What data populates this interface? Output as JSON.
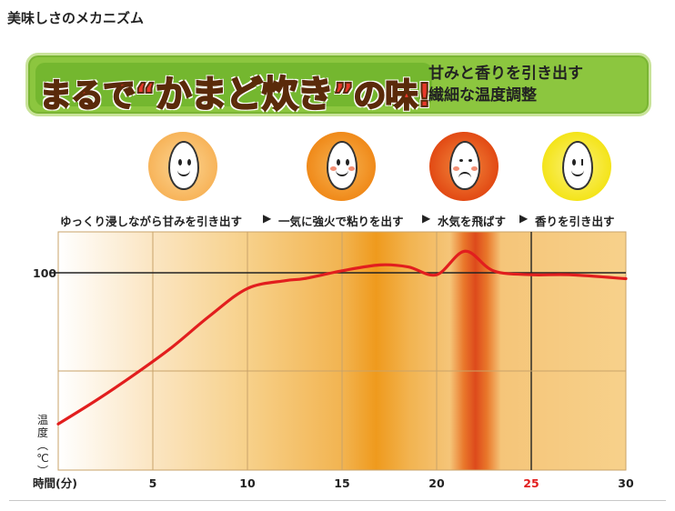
{
  "page": {
    "title": "美味しさのメカニズム"
  },
  "banner": {
    "main_prefix": "まるで",
    "main_open_quote": "“",
    "main_highlight": "かまど炊き",
    "main_close_quote": "”",
    "main_suffix": "の味!",
    "sub_line1": "甘みと香りを引き出す",
    "sub_line2": "繊細な温度調整"
  },
  "steps": [
    {
      "caption": "ゆっくり浸しながら甘みを引き出す",
      "face": "smile",
      "circle_color": "#f7b45a",
      "circle_inner": "#fcd593"
    },
    {
      "caption": "一気に強火で粘りを出す",
      "face": "blush",
      "circle_color": "#f08a1a",
      "circle_inner": "#f6b453"
    },
    {
      "caption": "水気を飛ばす",
      "face": "strain",
      "circle_color": "#e24a14",
      "circle_inner": "#f28a3e"
    },
    {
      "caption": "香りを引き出す",
      "face": "wink",
      "circle_color": "#f4e41a",
      "circle_inner": "#fbf27a"
    }
  ],
  "step_separator": "▶",
  "chart_data": {
    "type": "line",
    "title": "",
    "xlabel": "時間(分)",
    "ylabel": "温度(℃)",
    "xlim": [
      0,
      30
    ],
    "x_ticks": [
      "5",
      "10",
      "15",
      "20",
      "25",
      "30"
    ],
    "x_tick_values": [
      5,
      10,
      15,
      20,
      25,
      30
    ],
    "highlighted_tick": "25",
    "highlight_color": "#e21e1e",
    "y_tick_label": "100",
    "y_tick_value": 100,
    "series": [
      {
        "color": "#e21e1e",
        "x": [
          0,
          2,
          4,
          6,
          8,
          10,
          12,
          13,
          15,
          17,
          18.5,
          20,
          21.5,
          23,
          25,
          27,
          30
        ],
        "y": [
          23,
          35,
          48,
          62,
          78,
          92,
          96,
          97,
          101,
          104,
          103,
          99,
          111,
          101,
          99,
          99,
          97
        ]
      }
    ],
    "background_color": "#f7d18b",
    "grid": true
  }
}
